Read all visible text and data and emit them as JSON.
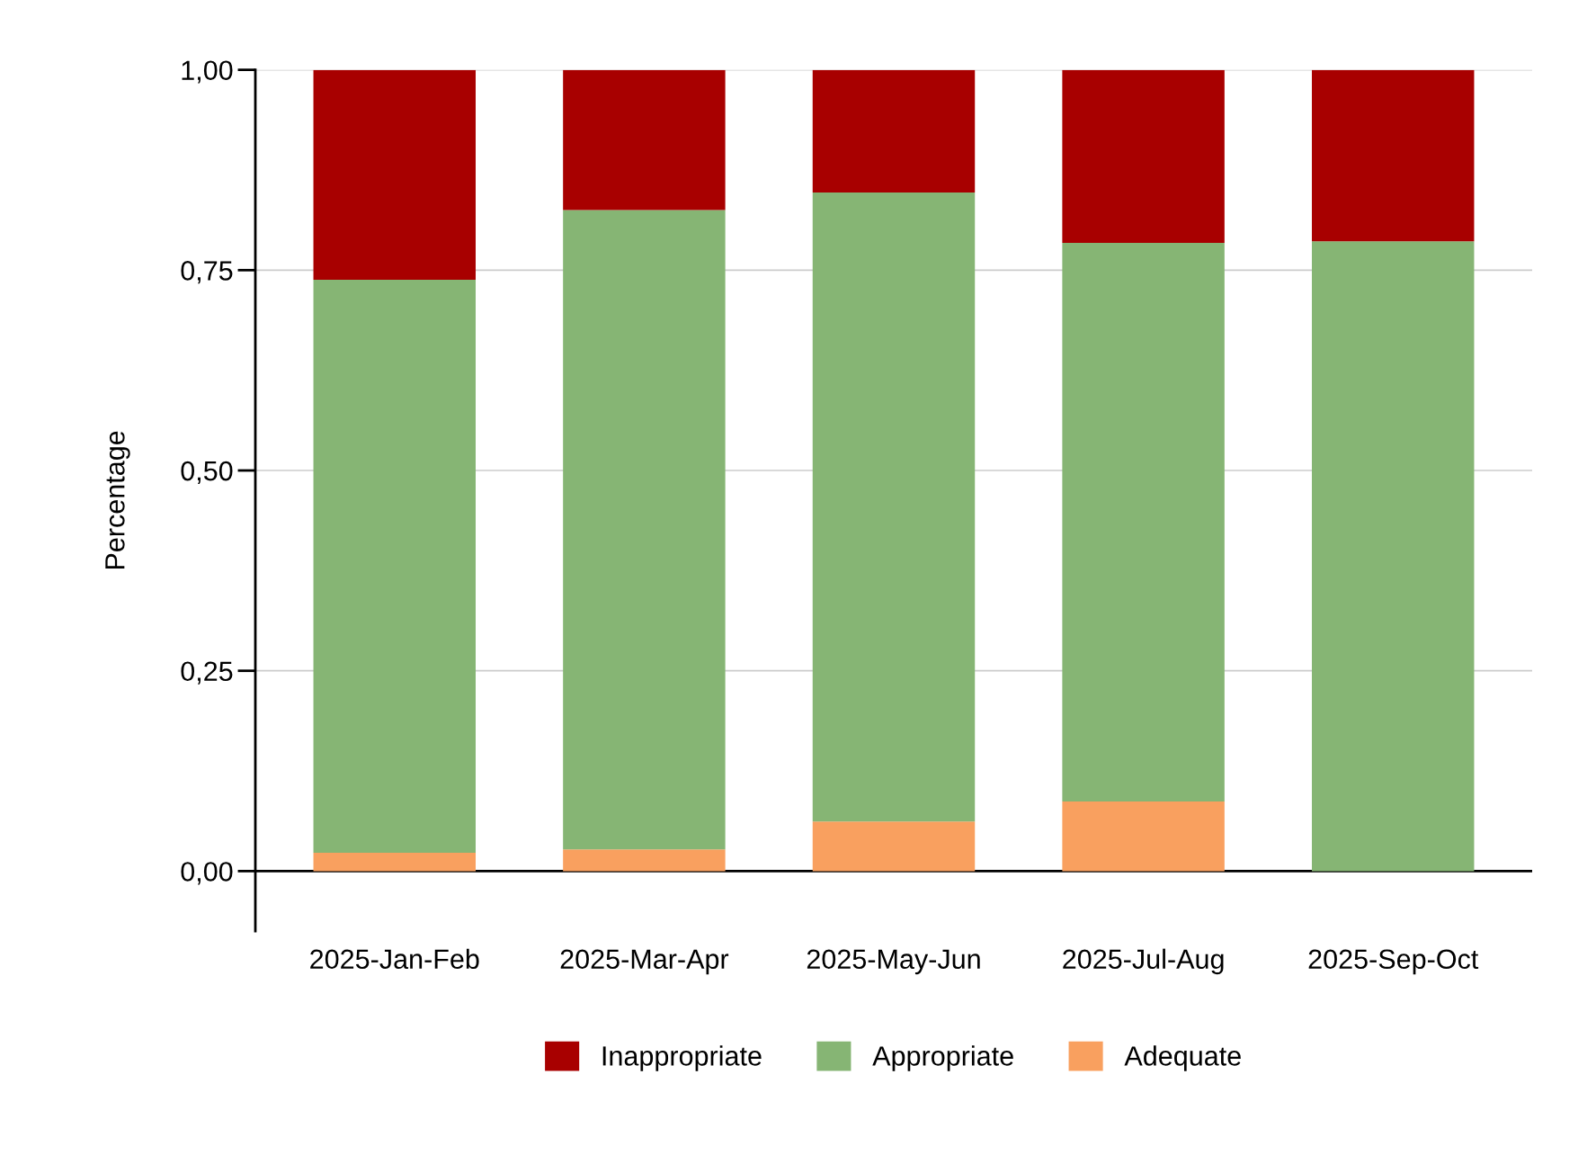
{
  "chart_data": {
    "type": "bar",
    "stacked": true,
    "ylabel": "Percentage",
    "categories": [
      "2025-Jan-Feb",
      "2025-Mar-Apr",
      "2025-May-Jun",
      "2025-Jul-Aug",
      "2025-Sep-Oct"
    ],
    "series": [
      {
        "name": "Adequate",
        "color": "#f9a05f",
        "values": [
          0.023,
          0.027,
          0.062,
          0.087,
          0
        ]
      },
      {
        "name": "Appropriate",
        "color": "#86b574",
        "values": [
          0.715,
          0.798,
          0.785,
          0.697,
          0.786
        ]
      },
      {
        "name": "Inappropriate",
        "color": "#a80000",
        "values": [
          0.262,
          0.175,
          0.153,
          0.216,
          0.214
        ]
      }
    ],
    "ylim": [
      -0.075,
      1.0
    ],
    "yticks": [
      {
        "value": 0,
        "label": "0,00"
      },
      {
        "value": 0.25,
        "label": "0,25"
      },
      {
        "value": 0.5,
        "label": "0,50"
      },
      {
        "value": 0.75,
        "label": "0,75"
      },
      {
        "value": 1.0,
        "label": "1,00"
      }
    ],
    "ref_lines": [
      {
        "axis": "y",
        "value": 0,
        "color": "#000000"
      }
    ],
    "grid": "y",
    "legend": "bottom"
  }
}
